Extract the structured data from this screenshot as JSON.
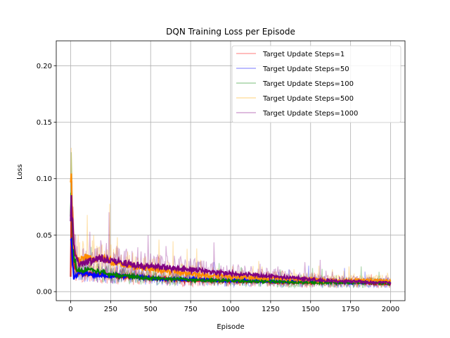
{
  "chart_data": {
    "type": "line",
    "title": "DQN Training Loss per Episode",
    "xlabel": "Episode",
    "ylabel": "Loss",
    "xlim": [
      -90,
      2090
    ],
    "ylim": [
      -0.008,
      0.222
    ],
    "xticks": [
      0,
      250,
      500,
      750,
      1000,
      1250,
      1500,
      1750,
      2000
    ],
    "yticks": [
      0.0,
      0.05,
      0.1,
      0.15,
      0.2
    ],
    "xtick_labels": [
      "0",
      "250",
      "500",
      "750",
      "1000",
      "1250",
      "1500",
      "1750",
      "2000"
    ],
    "ytick_labels": [
      "0.00",
      "0.05",
      "0.10",
      "0.15",
      "0.20"
    ],
    "grid": true,
    "legend_position": "top-right",
    "series": [
      {
        "name": "Target Update Steps=1",
        "color": "#ff0000",
        "smoothed_color": "#cc2222",
        "x": [
          0,
          5,
          10,
          20,
          40,
          60,
          80,
          100,
          150,
          200,
          250,
          300,
          400,
          500,
          600,
          700,
          800,
          900,
          1000,
          1100,
          1200,
          1300,
          1400,
          1500,
          1600,
          1700,
          1800,
          1900,
          2000
        ],
        "values": [
          0.014,
          0.085,
          0.05,
          0.025,
          0.018,
          0.017,
          0.016,
          0.016,
          0.015,
          0.015,
          0.014,
          0.014,
          0.013,
          0.012,
          0.011,
          0.01,
          0.01,
          0.01,
          0.009,
          0.009,
          0.009,
          0.008,
          0.008,
          0.008,
          0.008,
          0.008,
          0.008,
          0.007,
          0.007
        ]
      },
      {
        "name": "Target Update Steps=50",
        "color": "#0000ff",
        "smoothed_color": "#0000ff",
        "x": [
          0,
          5,
          10,
          20,
          40,
          60,
          80,
          100,
          150,
          200,
          250,
          300,
          400,
          500,
          600,
          700,
          800,
          900,
          1000,
          1100,
          1200,
          1300,
          1400,
          1500,
          1600,
          1700,
          1800,
          1900,
          2000
        ],
        "values": [
          0.05,
          0.045,
          0.03,
          0.012,
          0.015,
          0.016,
          0.016,
          0.016,
          0.015,
          0.015,
          0.014,
          0.014,
          0.013,
          0.012,
          0.011,
          0.011,
          0.011,
          0.01,
          0.01,
          0.01,
          0.009,
          0.009,
          0.009,
          0.009,
          0.009,
          0.008,
          0.008,
          0.008,
          0.008
        ]
      },
      {
        "name": "Target Update Steps=100",
        "color": "#008000",
        "smoothed_color": "#008000",
        "x": [
          0,
          5,
          10,
          20,
          40,
          60,
          80,
          100,
          150,
          200,
          250,
          300,
          400,
          500,
          600,
          700,
          800,
          900,
          1000,
          1100,
          1200,
          1300,
          1400,
          1500,
          1600,
          1700,
          1800,
          1900,
          2000
        ],
        "values": [
          0.06,
          0.105,
          0.06,
          0.03,
          0.02,
          0.018,
          0.02,
          0.019,
          0.018,
          0.017,
          0.015,
          0.014,
          0.013,
          0.012,
          0.011,
          0.011,
          0.01,
          0.01,
          0.01,
          0.009,
          0.009,
          0.009,
          0.008,
          0.008,
          0.008,
          0.008,
          0.008,
          0.008,
          0.007
        ]
      },
      {
        "name": "Target Update Steps=500",
        "color": "#ffa500",
        "smoothed_color": "#ff8c00",
        "x": [
          0,
          5,
          10,
          20,
          40,
          60,
          80,
          100,
          150,
          200,
          250,
          300,
          400,
          500,
          600,
          700,
          800,
          900,
          1000,
          1100,
          1200,
          1300,
          1400,
          1500,
          1600,
          1700,
          1800,
          1900,
          2000
        ],
        "values": [
          0.09,
          0.1,
          0.07,
          0.04,
          0.03,
          0.028,
          0.031,
          0.03,
          0.029,
          0.029,
          0.027,
          0.025,
          0.022,
          0.02,
          0.018,
          0.017,
          0.015,
          0.014,
          0.013,
          0.013,
          0.012,
          0.012,
          0.011,
          0.011,
          0.01,
          0.01,
          0.01,
          0.01,
          0.009
        ]
      },
      {
        "name": "Target Update Steps=1000",
        "color": "#800080",
        "smoothed_color": "#800080",
        "x": [
          0,
          5,
          10,
          20,
          40,
          60,
          80,
          100,
          150,
          200,
          250,
          300,
          400,
          500,
          600,
          700,
          800,
          900,
          1000,
          1100,
          1200,
          1300,
          1400,
          1500,
          1600,
          1700,
          1800,
          1900,
          2000
        ],
        "values": [
          0.06,
          0.09,
          0.065,
          0.04,
          0.027,
          0.024,
          0.025,
          0.026,
          0.028,
          0.03,
          0.028,
          0.026,
          0.024,
          0.022,
          0.021,
          0.02,
          0.019,
          0.017,
          0.016,
          0.015,
          0.014,
          0.013,
          0.012,
          0.011,
          0.01,
          0.009,
          0.009,
          0.008,
          0.008
        ]
      }
    ]
  }
}
